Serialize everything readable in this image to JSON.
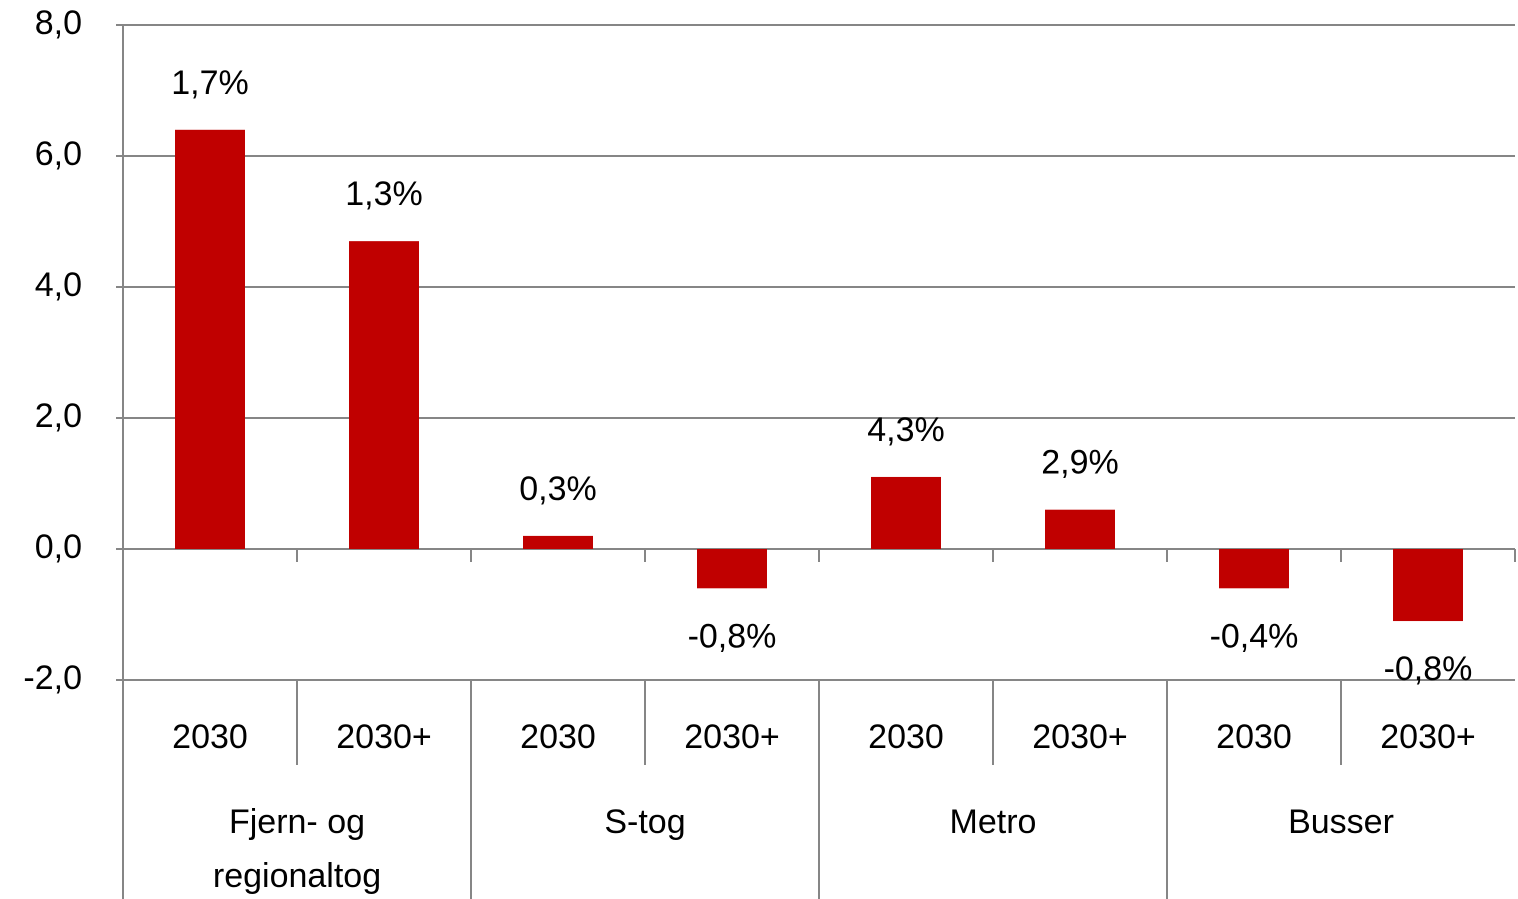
{
  "chart_data": {
    "type": "bar",
    "categories": [
      "2030",
      "2030+",
      "2030",
      "2030+",
      "2030",
      "2030+",
      "2030",
      "2030+"
    ],
    "groups": [
      "Fjern- og regionaltog",
      "S-tog",
      "Metro",
      "Busser"
    ],
    "values": [
      6.4,
      4.7,
      0.2,
      -0.6,
      1.1,
      0.6,
      -0.6,
      -1.1
    ],
    "annotations": [
      "1,7%",
      "1,3%",
      "0,3%",
      "-0,8%",
      "4,3%",
      "2,9%",
      "-0,4%",
      "-0,8%"
    ],
    "color": "#c00000",
    "ylim": [
      -2,
      8
    ],
    "yticks": [
      {
        "value": -2,
        "label": "-2,0"
      },
      {
        "value": 0,
        "label": "0,0"
      },
      {
        "value": 2,
        "label": "2,0"
      },
      {
        "value": 4,
        "label": "4,0"
      },
      {
        "value": 6,
        "label": "6,0"
      },
      {
        "value": 8,
        "label": "8,0"
      }
    ],
    "grid": true
  }
}
